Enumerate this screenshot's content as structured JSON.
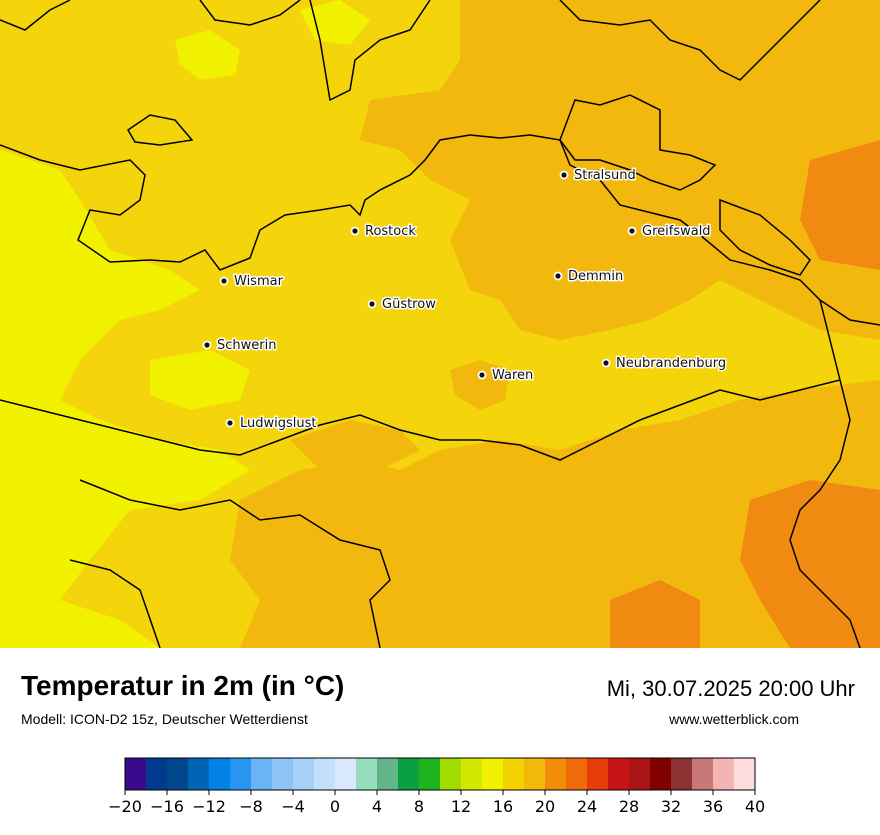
{
  "map": {
    "background_color": "#f4d40a",
    "warm_color": "#f2b80d",
    "cool_color": "#f2f200",
    "hot_color": "#f08a10",
    "coast_color": "#000000",
    "cities": [
      {
        "name": "Stralsund"
      },
      {
        "name": "Rostock"
      },
      {
        "name": "Greifswald"
      },
      {
        "name": "Wismar"
      },
      {
        "name": "Demmin"
      },
      {
        "name": "Güstrow"
      },
      {
        "name": "Schwerin"
      },
      {
        "name": "Neubrandenburg"
      },
      {
        "name": "Waren"
      },
      {
        "name": "Ludwigslust"
      }
    ]
  },
  "footer": {
    "title": "Temperatur in 2m (in °C)",
    "subtitle": "Modell: ICON-D2 15z, Deutscher Wetterdienst",
    "datetime": "Mi, 30.07.2025 20:00 Uhr",
    "website": "www.wetterblick.com"
  },
  "legend": {
    "min": -20,
    "max": 40,
    "step": 2,
    "colors": [
      "#3a0a8c",
      "#003a8c",
      "#00468a",
      "#0064b4",
      "#0082e6",
      "#2896f0",
      "#6ab4f5",
      "#8cc4f5",
      "#a6d0f8",
      "#c4dffa",
      "#d8eafc",
      "#96dcbe",
      "#64b48a",
      "#08a040",
      "#1eb41e",
      "#a0dc00",
      "#d2e800",
      "#f0f000",
      "#f2d200",
      "#f2b80a",
      "#f28c0a",
      "#f06c0a",
      "#e63c0a",
      "#c81414",
      "#aa1414",
      "#820000",
      "#8c3232",
      "#c87878",
      "#f5b4b4",
      "#ffdcdc"
    ],
    "tick_labels": [
      "−20",
      "−16",
      "−12",
      "−8",
      "−4",
      "0",
      "4",
      "8",
      "12",
      "16",
      "20",
      "24",
      "28",
      "32",
      "36",
      "40"
    ]
  }
}
